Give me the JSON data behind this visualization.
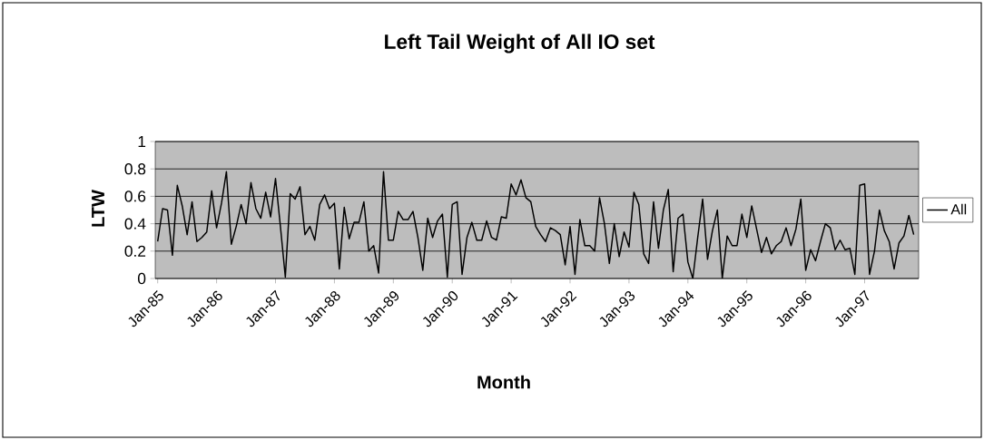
{
  "chart_data": {
    "type": "line",
    "title": "Left Tail Weight of All IO set",
    "xlabel": "Month",
    "ylabel": "LTW",
    "x": [
      "1985-01",
      "1985-02",
      "1985-03",
      "1985-04",
      "1985-05",
      "1985-06",
      "1985-07",
      "1985-08",
      "1985-09",
      "1985-10",
      "1985-11",
      "1985-12",
      "1986-01",
      "1986-02",
      "1986-03",
      "1986-04",
      "1986-05",
      "1986-06",
      "1986-07",
      "1986-08",
      "1986-09",
      "1986-10",
      "1986-11",
      "1986-12",
      "1987-01",
      "1987-02",
      "1987-03",
      "1987-04",
      "1987-05",
      "1987-06",
      "1987-07",
      "1987-08",
      "1987-09",
      "1987-10",
      "1987-11",
      "1987-12",
      "1988-01",
      "1988-02",
      "1988-03",
      "1988-04",
      "1988-05",
      "1988-06",
      "1988-07",
      "1988-08",
      "1988-09",
      "1988-10",
      "1988-11",
      "1988-12",
      "1989-01",
      "1989-02",
      "1989-03",
      "1989-04",
      "1989-05",
      "1989-06",
      "1989-07",
      "1989-08",
      "1989-09",
      "1989-10",
      "1989-11",
      "1989-12",
      "1990-01",
      "1990-02",
      "1990-03",
      "1990-04",
      "1990-05",
      "1990-06",
      "1990-07",
      "1990-08",
      "1990-09",
      "1990-10",
      "1990-11",
      "1990-12",
      "1991-01",
      "1991-02",
      "1991-03",
      "1991-04",
      "1991-05",
      "1991-06",
      "1991-07",
      "1991-08",
      "1991-09",
      "1991-10",
      "1991-11",
      "1991-12",
      "1992-01",
      "1992-02",
      "1992-03",
      "1992-04",
      "1992-05",
      "1992-06",
      "1992-07",
      "1992-08",
      "1992-09",
      "1992-10",
      "1992-11",
      "1992-12",
      "1993-01",
      "1993-02",
      "1993-03",
      "1993-04",
      "1993-05",
      "1993-06",
      "1993-07",
      "1993-08",
      "1993-09",
      "1993-10",
      "1993-11",
      "1993-12",
      "1994-01",
      "1994-02",
      "1994-03",
      "1994-04",
      "1994-05",
      "1994-06",
      "1994-07",
      "1994-08",
      "1994-09",
      "1994-10",
      "1994-11",
      "1994-12",
      "1995-01",
      "1995-02",
      "1995-03",
      "1995-04",
      "1995-05",
      "1995-06",
      "1995-07",
      "1995-08",
      "1995-09",
      "1995-10",
      "1995-11",
      "1995-12",
      "1996-01",
      "1996-02",
      "1996-03",
      "1996-04",
      "1996-05",
      "1996-06",
      "1996-07",
      "1996-08",
      "1996-09",
      "1996-10",
      "1996-11",
      "1996-12",
      "1997-01",
      "1997-02",
      "1997-03",
      "1997-04",
      "1997-05",
      "1997-06",
      "1997-07",
      "1997-08",
      "1997-09",
      "1997-10",
      "1997-11"
    ],
    "series": [
      {
        "name": "All",
        "color": "#000000",
        "values": [
          0.27,
          0.51,
          0.5,
          0.17,
          0.68,
          0.53,
          0.32,
          0.56,
          0.27,
          0.3,
          0.34,
          0.64,
          0.37,
          0.55,
          0.78,
          0.25,
          0.38,
          0.54,
          0.4,
          0.7,
          0.51,
          0.44,
          0.63,
          0.45,
          0.73,
          0.38,
          0.01,
          0.62,
          0.58,
          0.67,
          0.32,
          0.38,
          0.28,
          0.54,
          0.61,
          0.51,
          0.55,
          0.07,
          0.52,
          0.29,
          0.41,
          0.41,
          0.56,
          0.2,
          0.24,
          0.04,
          0.78,
          0.28,
          0.28,
          0.49,
          0.43,
          0.43,
          0.49,
          0.3,
          0.06,
          0.44,
          0.3,
          0.42,
          0.47,
          0.01,
          0.54,
          0.56,
          0.03,
          0.3,
          0.41,
          0.28,
          0.28,
          0.42,
          0.3,
          0.28,
          0.45,
          0.44,
          0.69,
          0.61,
          0.72,
          0.59,
          0.56,
          0.38,
          0.32,
          0.27,
          0.37,
          0.35,
          0.32,
          0.1,
          0.38,
          0.03,
          0.43,
          0.24,
          0.24,
          0.2,
          0.59,
          0.4,
          0.11,
          0.4,
          0.16,
          0.34,
          0.23,
          0.63,
          0.54,
          0.18,
          0.11,
          0.56,
          0.22,
          0.5,
          0.65,
          0.05,
          0.44,
          0.47,
          0.12,
          0.0,
          0.3,
          0.58,
          0.14,
          0.35,
          0.5,
          0.0,
          0.31,
          0.24,
          0.24,
          0.47,
          0.3,
          0.53,
          0.36,
          0.19,
          0.3,
          0.18,
          0.24,
          0.27,
          0.37,
          0.24,
          0.36,
          0.58,
          0.06,
          0.21,
          0.13,
          0.27,
          0.4,
          0.37,
          0.21,
          0.28,
          0.21,
          0.22,
          0.03,
          0.68,
          0.69,
          0.03,
          0.2,
          0.5,
          0.35,
          0.27,
          0.07,
          0.26,
          0.31,
          0.46,
          0.32
        ]
      }
    ],
    "xlim": [
      "1984-12-16",
      "1997-12-01"
    ],
    "xticks": [
      {
        "value": "1985-01",
        "label": "Jan-85"
      },
      {
        "value": "1986-01",
        "label": "Jan-86"
      },
      {
        "value": "1987-01",
        "label": "Jan-87"
      },
      {
        "value": "1988-01",
        "label": "Jan-88"
      },
      {
        "value": "1989-01",
        "label": "Jan-89"
      },
      {
        "value": "1990-01",
        "label": "Jan-90"
      },
      {
        "value": "1991-01",
        "label": "Jan-91"
      },
      {
        "value": "1992-01",
        "label": "Jan-92"
      },
      {
        "value": "1993-01",
        "label": "Jan-93"
      },
      {
        "value": "1994-01",
        "label": "Jan-94"
      },
      {
        "value": "1995-01",
        "label": "Jan-95"
      },
      {
        "value": "1996-01",
        "label": "Jan-96"
      },
      {
        "value": "1997-01",
        "label": "Jan-97"
      }
    ],
    "ylim": [
      0,
      1
    ],
    "yticks": [
      0,
      0.2,
      0.4,
      0.6,
      0.8,
      1
    ],
    "grid": "y",
    "legend": "right",
    "marker": "none",
    "line_style": "solid"
  }
}
